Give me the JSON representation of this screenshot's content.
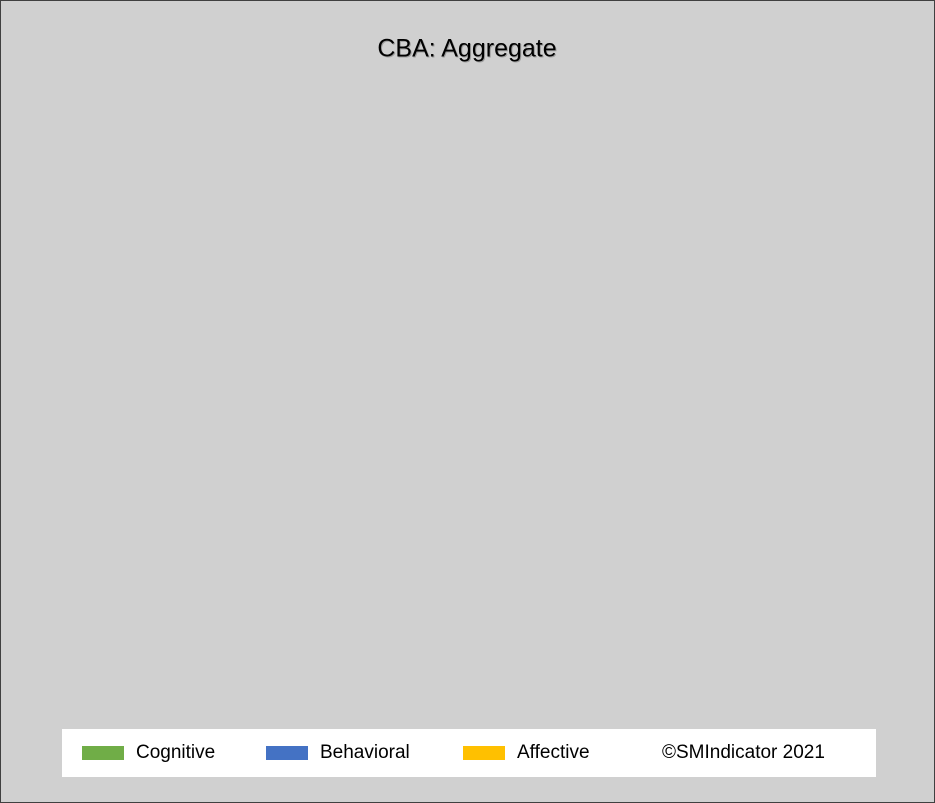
{
  "chart_data": {
    "type": "bar",
    "title": "CBA: Aggregate",
    "series": [
      {
        "name": "Cognitive",
        "color": "#70ad47"
      },
      {
        "name": "Behavioral",
        "color": "#4472c4"
      },
      {
        "name": "Affective",
        "color": "#ffc000"
      }
    ],
    "annotations": [
      "©SMIndicator 2021"
    ]
  }
}
